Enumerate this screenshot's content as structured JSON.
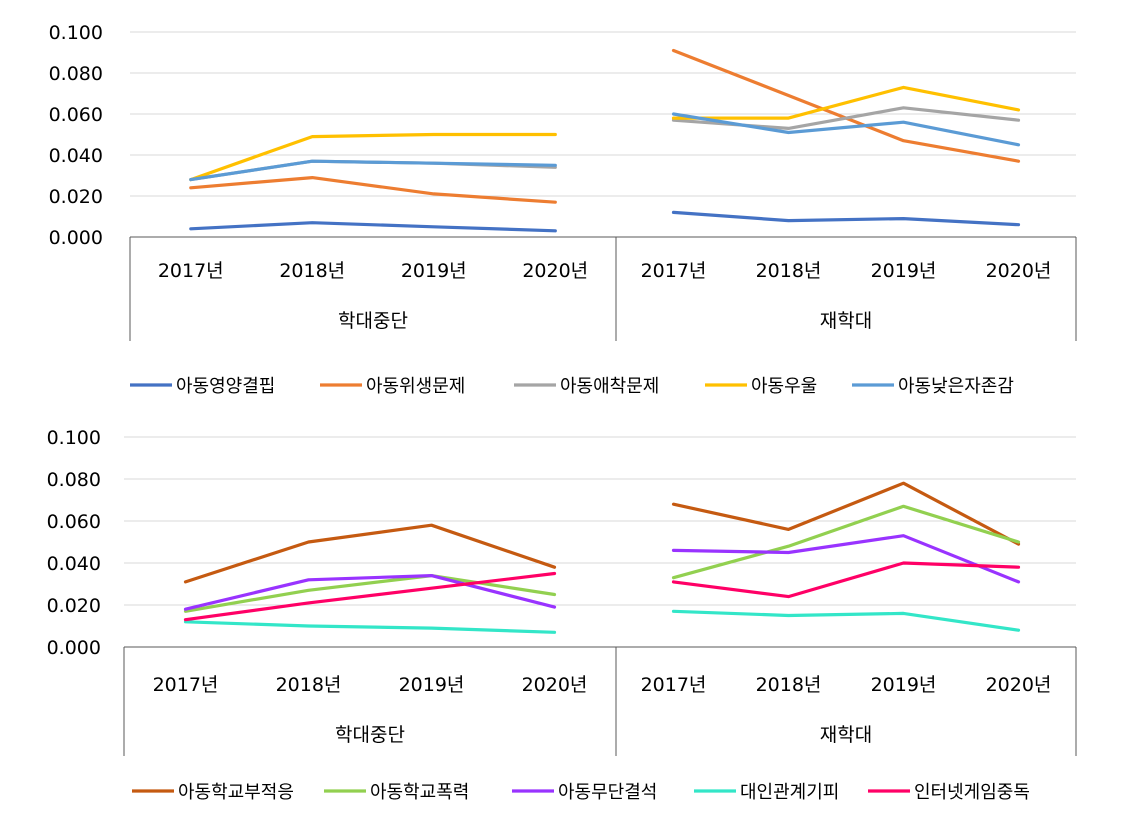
{
  "chart_data": [
    {
      "type": "line",
      "y_ticks": [
        "0.000",
        "0.020",
        "0.040",
        "0.060",
        "0.080",
        "0.100"
      ],
      "ylim": [
        0,
        0.1
      ],
      "groups": [
        {
          "label": "학대중단",
          "categories": [
            "2017년",
            "2018년",
            "2019년",
            "2020년"
          ]
        },
        {
          "label": "재학대",
          "categories": [
            "2017년",
            "2018년",
            "2019년",
            "2020년"
          ]
        }
      ],
      "series": [
        {
          "name": "아동영양결핍",
          "color": "#4472c4",
          "values": [
            [
              0.004,
              0.007,
              0.005,
              0.003
            ],
            [
              0.012,
              0.008,
              0.009,
              0.006
            ]
          ]
        },
        {
          "name": "아동위생문제",
          "color": "#ed7d31",
          "values": [
            [
              0.024,
              0.029,
              0.021,
              0.017
            ],
            [
              0.091,
              0.069,
              0.047,
              0.037
            ]
          ]
        },
        {
          "name": "아동애착문제",
          "color": "#a5a5a5",
          "values": [
            [
              0.028,
              0.037,
              0.036,
              0.034
            ],
            [
              0.057,
              0.053,
              0.063,
              0.057
            ]
          ]
        },
        {
          "name": "아동우울",
          "color": "#ffc000",
          "values": [
            [
              0.028,
              0.049,
              0.05,
              0.05
            ],
            [
              0.058,
              0.058,
              0.073,
              0.062
            ]
          ]
        },
        {
          "name": "아동낮은자존감",
          "color": "#5b9bd5",
          "values": [
            [
              0.028,
              0.037,
              0.036,
              0.035
            ],
            [
              0.06,
              0.051,
              0.056,
              0.045
            ]
          ]
        }
      ]
    },
    {
      "type": "line",
      "y_ticks": [
        "0.000",
        "0.020",
        "0.040",
        "0.060",
        "0.080",
        "0.100"
      ],
      "ylim": [
        0,
        0.1
      ],
      "groups": [
        {
          "label": "학대중단",
          "categories": [
            "2017년",
            "2018년",
            "2019년",
            "2020년"
          ]
        },
        {
          "label": "재학대",
          "categories": [
            "2017년",
            "2018년",
            "2019년",
            "2020년"
          ]
        }
      ],
      "series": [
        {
          "name": "아동학교부적응",
          "color": "#c55a11",
          "values": [
            [
              0.031,
              0.05,
              0.058,
              0.038
            ],
            [
              0.068,
              0.056,
              0.078,
              0.049
            ]
          ]
        },
        {
          "name": "아동학교폭력",
          "color": "#92d050",
          "values": [
            [
              0.017,
              0.027,
              0.034,
              0.025
            ],
            [
              0.033,
              0.048,
              0.067,
              0.05
            ]
          ]
        },
        {
          "name": "아동무단결석",
          "color": "#9933ff",
          "values": [
            [
              0.018,
              0.032,
              0.034,
              0.019
            ],
            [
              0.046,
              0.045,
              0.053,
              0.031
            ]
          ]
        },
        {
          "name": "대인관계기피",
          "color": "#33e6c8",
          "values": [
            [
              0.012,
              0.01,
              0.009,
              0.007
            ],
            [
              0.017,
              0.015,
              0.016,
              0.008
            ]
          ]
        },
        {
          "name": "인터넷게임중독",
          "color": "#ff0066",
          "values": [
            [
              0.013,
              0.021,
              0.028,
              0.035
            ],
            [
              0.031,
              0.024,
              0.04,
              0.038
            ]
          ]
        }
      ]
    }
  ]
}
